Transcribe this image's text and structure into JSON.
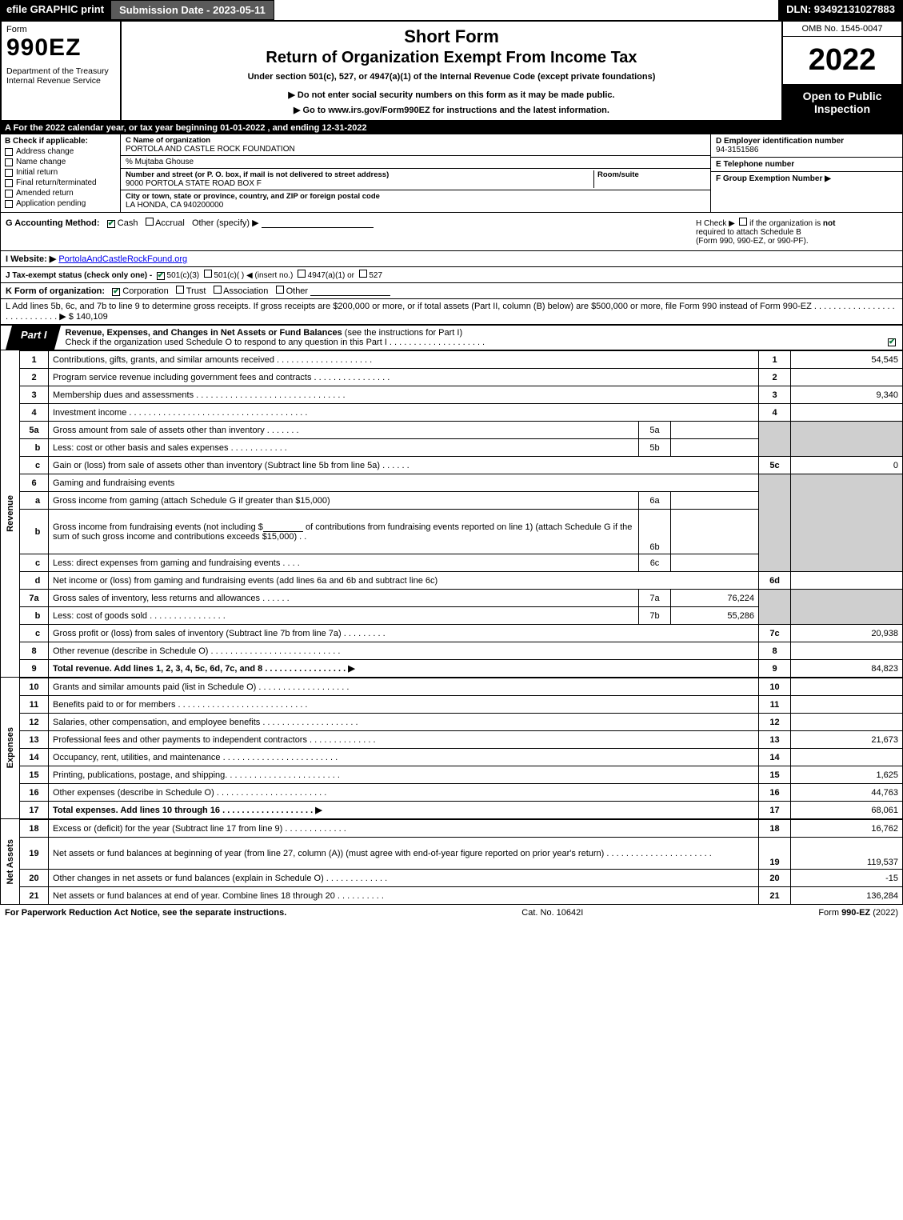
{
  "colors": {
    "bg_black": "#000000",
    "bg_gray": "#5a5a5a",
    "shade": "#cfcfcf",
    "check_green": "#0a7a3a",
    "link": "#0000ee"
  },
  "topbar": {
    "efile": "efile GRAPHIC print",
    "subdate": "Submission Date - 2023-05-11",
    "dln": "DLN: 93492131027883"
  },
  "header": {
    "form_label": "Form",
    "form_no": "990EZ",
    "dept": "Department of the Treasury\nInternal Revenue Service",
    "title1": "Short Form",
    "title2": "Return of Organization Exempt From Income Tax",
    "subtitle": "Under section 501(c), 527, or 4947(a)(1) of the Internal Revenue Code (except private foundations)",
    "warn": "▶ Do not enter social security numbers on this form as it may be made public.",
    "goto": "▶ Go to www.irs.gov/Form990EZ for instructions and the latest information.",
    "omb": "OMB No. 1545-0047",
    "year": "2022",
    "open": "Open to Public Inspection"
  },
  "section_a": "A  For the 2022 calendar year, or tax year beginning 01-01-2022  , and ending 12-31-2022",
  "box_b": {
    "title": "B  Check if applicable:",
    "items": [
      "Address change",
      "Name change",
      "Initial return",
      "Final return/terminated",
      "Amended return",
      "Application pending"
    ]
  },
  "box_c": {
    "name_lbl": "C Name of organization",
    "name_val": "PORTOLA AND CASTLE ROCK FOUNDATION",
    "care_of": "% Mujtaba Ghouse",
    "street_lbl": "Number and street (or P. O. box, if mail is not delivered to street address)",
    "room_lbl": "Room/suite",
    "street_val": "9000 PORTOLA STATE ROAD BOX F",
    "city_lbl": "City or town, state or province, country, and ZIP or foreign postal code",
    "city_val": "LA HONDA, CA  940200000"
  },
  "box_d": {
    "lbl": "D Employer identification number",
    "val": "94-3151586"
  },
  "box_e": {
    "lbl": "E Telephone number",
    "val": ""
  },
  "box_f": {
    "lbl": "F Group Exemption Number  ▶",
    "val": ""
  },
  "row_g": {
    "label": "G Accounting Method:",
    "cash": "Cash",
    "accrual": "Accrual",
    "other": "Other (specify) ▶",
    "cash_checked": true
  },
  "row_h": {
    "text1": "H  Check ▶",
    "text2": " if the organization is ",
    "not": "not",
    "text3": "required to attach Schedule B",
    "text4": "(Form 990, 990-EZ, or 990-PF)."
  },
  "row_i": {
    "lbl": "I Website: ▶",
    "val": "PortolaAndCastleRockFound.org"
  },
  "row_j": {
    "lbl": "J Tax-exempt status (check only one) -",
    "o1": "501(c)(3)",
    "o2": "501(c)(  ) ◀ (insert no.)",
    "o3": "4947(a)(1) or",
    "o4": "527",
    "o1_checked": true
  },
  "row_k": {
    "lbl": "K Form of organization:",
    "opts": [
      "Corporation",
      "Trust",
      "Association",
      "Other"
    ],
    "checked": 0
  },
  "row_l": {
    "text": "L Add lines 5b, 6c, and 7b to line 9 to determine gross receipts. If gross receipts are $200,000 or more, or if total assets (Part II, column (B) below) are $500,000 or more, file Form 990 instead of Form 990-EZ  .  .  .  .  .  .  .  .  .  .  .  .  .  .  .  .  .  .  .  .  .  .  .  .  .  .  .  .  ▶ $",
    "amount": "140,109"
  },
  "part1": {
    "tab": "Part I",
    "title": "Revenue, Expenses, and Changes in Net Assets or Fund Balances",
    "paren": "(see the instructions for Part I)",
    "sub": "Check if the organization used Schedule O to respond to any question in this Part I  .  .  .  .  .  .  .  .  .  .  .  .  .  .  .  .  .  .  .  .",
    "sub_checked": true
  },
  "sidetabs": {
    "rev": "Revenue",
    "exp": "Expenses",
    "na": "Net Assets"
  },
  "lines": {
    "l1": {
      "n": "1",
      "d": "Contributions, gifts, grants, and similar amounts received  .  .  .  .  .  .  .  .  .  .  .  .  .  .  .  .  .  .  .  .",
      "r": "1",
      "v": "54,545"
    },
    "l2": {
      "n": "2",
      "d": "Program service revenue including government fees and contracts  .  .  .  .  .  .  .  .  .  .  .  .  .  .  .  .",
      "r": "2",
      "v": ""
    },
    "l3": {
      "n": "3",
      "d": "Membership dues and assessments  .  .  .  .  .  .  .  .  .  .  .  .  .  .  .  .  .  .  .  .  .  .  .  .  .  .  .  .  .  .  .",
      "r": "3",
      "v": "9,340"
    },
    "l4": {
      "n": "4",
      "d": "Investment income  .  .  .  .  .  .  .  .  .  .  .  .  .  .  .  .  .  .  .  .  .  .  .  .  .  .  .  .  .  .  .  .  .  .  .  .  .",
      "r": "4",
      "v": ""
    },
    "l5a": {
      "n": "5a",
      "d": "Gross amount from sale of assets other than inventory  .  .  .  .  .  .  .",
      "m": "5a",
      "mv": ""
    },
    "l5b": {
      "n": "b",
      "d": "Less: cost or other basis and sales expenses  .  .  .  .  .  .  .  .  .  .  .  .",
      "m": "5b",
      "mv": ""
    },
    "l5c": {
      "n": "c",
      "d": "Gain or (loss) from sale of assets other than inventory (Subtract line 5b from line 5a)  .  .  .  .  .  .",
      "r": "5c",
      "v": "0"
    },
    "l6": {
      "n": "6",
      "d": "Gaming and fundraising events"
    },
    "l6a": {
      "n": "a",
      "d": "Gross income from gaming (attach Schedule G if greater than $15,000)",
      "m": "6a",
      "mv": ""
    },
    "l6b": {
      "n": "b",
      "d1": "Gross income from fundraising events (not including $",
      "gap": "",
      "d2": "of contributions from fundraising events reported on line 1) (attach Schedule G if the sum of such gross income and contributions exceeds $15,000)   .  .",
      "m": "6b",
      "mv": ""
    },
    "l6c": {
      "n": "c",
      "d": "Less: direct expenses from gaming and fundraising events   .  .  .  .",
      "m": "6c",
      "mv": ""
    },
    "l6d": {
      "n": "d",
      "d": "Net income or (loss) from gaming and fundraising events (add lines 6a and 6b and subtract line 6c)",
      "r": "6d",
      "v": ""
    },
    "l7a": {
      "n": "7a",
      "d": "Gross sales of inventory, less returns and allowances  .  .  .  .  .  .",
      "m": "7a",
      "mv": "76,224"
    },
    "l7b": {
      "n": "b",
      "d": "Less: cost of goods sold       .  .  .  .  .  .  .  .  .  .  .  .  .  .  .  .",
      "m": "7b",
      "mv": "55,286"
    },
    "l7c": {
      "n": "c",
      "d": "Gross profit or (loss) from sales of inventory (Subtract line 7b from line 7a)  .  .  .  .  .  .  .  .  .",
      "r": "7c",
      "v": "20,938"
    },
    "l8": {
      "n": "8",
      "d": "Other revenue (describe in Schedule O)  .  .  .  .  .  .  .  .  .  .  .  .  .  .  .  .  .  .  .  .  .  .  .  .  .  .  .",
      "r": "8",
      "v": ""
    },
    "l9": {
      "n": "9",
      "d": "Total revenue. Add lines 1, 2, 3, 4, 5c, 6d, 7c, and 8   .  .  .  .  .  .  .  .  .  .  .  .  .  .  .  .  .    ▶",
      "r": "9",
      "v": "84,823",
      "bold": true
    },
    "l10": {
      "n": "10",
      "d": "Grants and similar amounts paid (list in Schedule O)  .  .  .  .  .  .  .  .  .  .  .  .  .  .  .  .  .  .  .",
      "r": "10",
      "v": ""
    },
    "l11": {
      "n": "11",
      "d": "Benefits paid to or for members     .  .  .  .  .  .  .  .  .  .  .  .  .  .  .  .  .  .  .  .  .  .  .  .  .  .  .",
      "r": "11",
      "v": ""
    },
    "l12": {
      "n": "12",
      "d": "Salaries, other compensation, and employee benefits .  .  .  .  .  .  .  .  .  .  .  .  .  .  .  .  .  .  .  .",
      "r": "12",
      "v": ""
    },
    "l13": {
      "n": "13",
      "d": "Professional fees and other payments to independent contractors  .  .  .  .  .  .  .  .  .  .  .  .  .  .",
      "r": "13",
      "v": "21,673"
    },
    "l14": {
      "n": "14",
      "d": "Occupancy, rent, utilities, and maintenance .  .  .  .  .  .  .  .  .  .  .  .  .  .  .  .  .  .  .  .  .  .  .  .",
      "r": "14",
      "v": ""
    },
    "l15": {
      "n": "15",
      "d": "Printing, publications, postage, and shipping.  .  .  .  .  .  .  .  .  .  .  .  .  .  .  .  .  .  .  .  .  .  .  .",
      "r": "15",
      "v": "1,625"
    },
    "l16": {
      "n": "16",
      "d": "Other expenses (describe in Schedule O)     .  .  .  .  .  .  .  .  .  .  .  .  .  .  .  .  .  .  .  .  .  .  .",
      "r": "16",
      "v": "44,763"
    },
    "l17": {
      "n": "17",
      "d": "Total expenses. Add lines 10 through 16      .  .  .  .  .  .  .  .  .  .  .  .  .  .  .  .  .  .  .    ▶",
      "r": "17",
      "v": "68,061",
      "bold": true
    },
    "l18": {
      "n": "18",
      "d": "Excess or (deficit) for the year (Subtract line 17 from line 9)       .  .  .  .  .  .  .  .  .  .  .  .  .",
      "r": "18",
      "v": "16,762"
    },
    "l19": {
      "n": "19",
      "d": "Net assets or fund balances at beginning of year (from line 27, column (A)) (must agree with end-of-year figure reported on prior year's return) .  .  .  .  .  .  .  .  .  .  .  .  .  .  .  .  .  .  .  .  .  .",
      "r": "19",
      "v": "119,537"
    },
    "l20": {
      "n": "20",
      "d": "Other changes in net assets or fund balances (explain in Schedule O) .  .  .  .  .  .  .  .  .  .  .  .  .",
      "r": "20",
      "v": "-15"
    },
    "l21": {
      "n": "21",
      "d": "Net assets or fund balances at end of year. Combine lines 18 through 20 .  .  .  .  .  .  .  .  .  .",
      "r": "21",
      "v": "136,284"
    }
  },
  "footer": {
    "left": "For Paperwork Reduction Act Notice, see the separate instructions.",
    "mid": "Cat. No. 10642I",
    "right": "Form 990-EZ (2022)"
  }
}
